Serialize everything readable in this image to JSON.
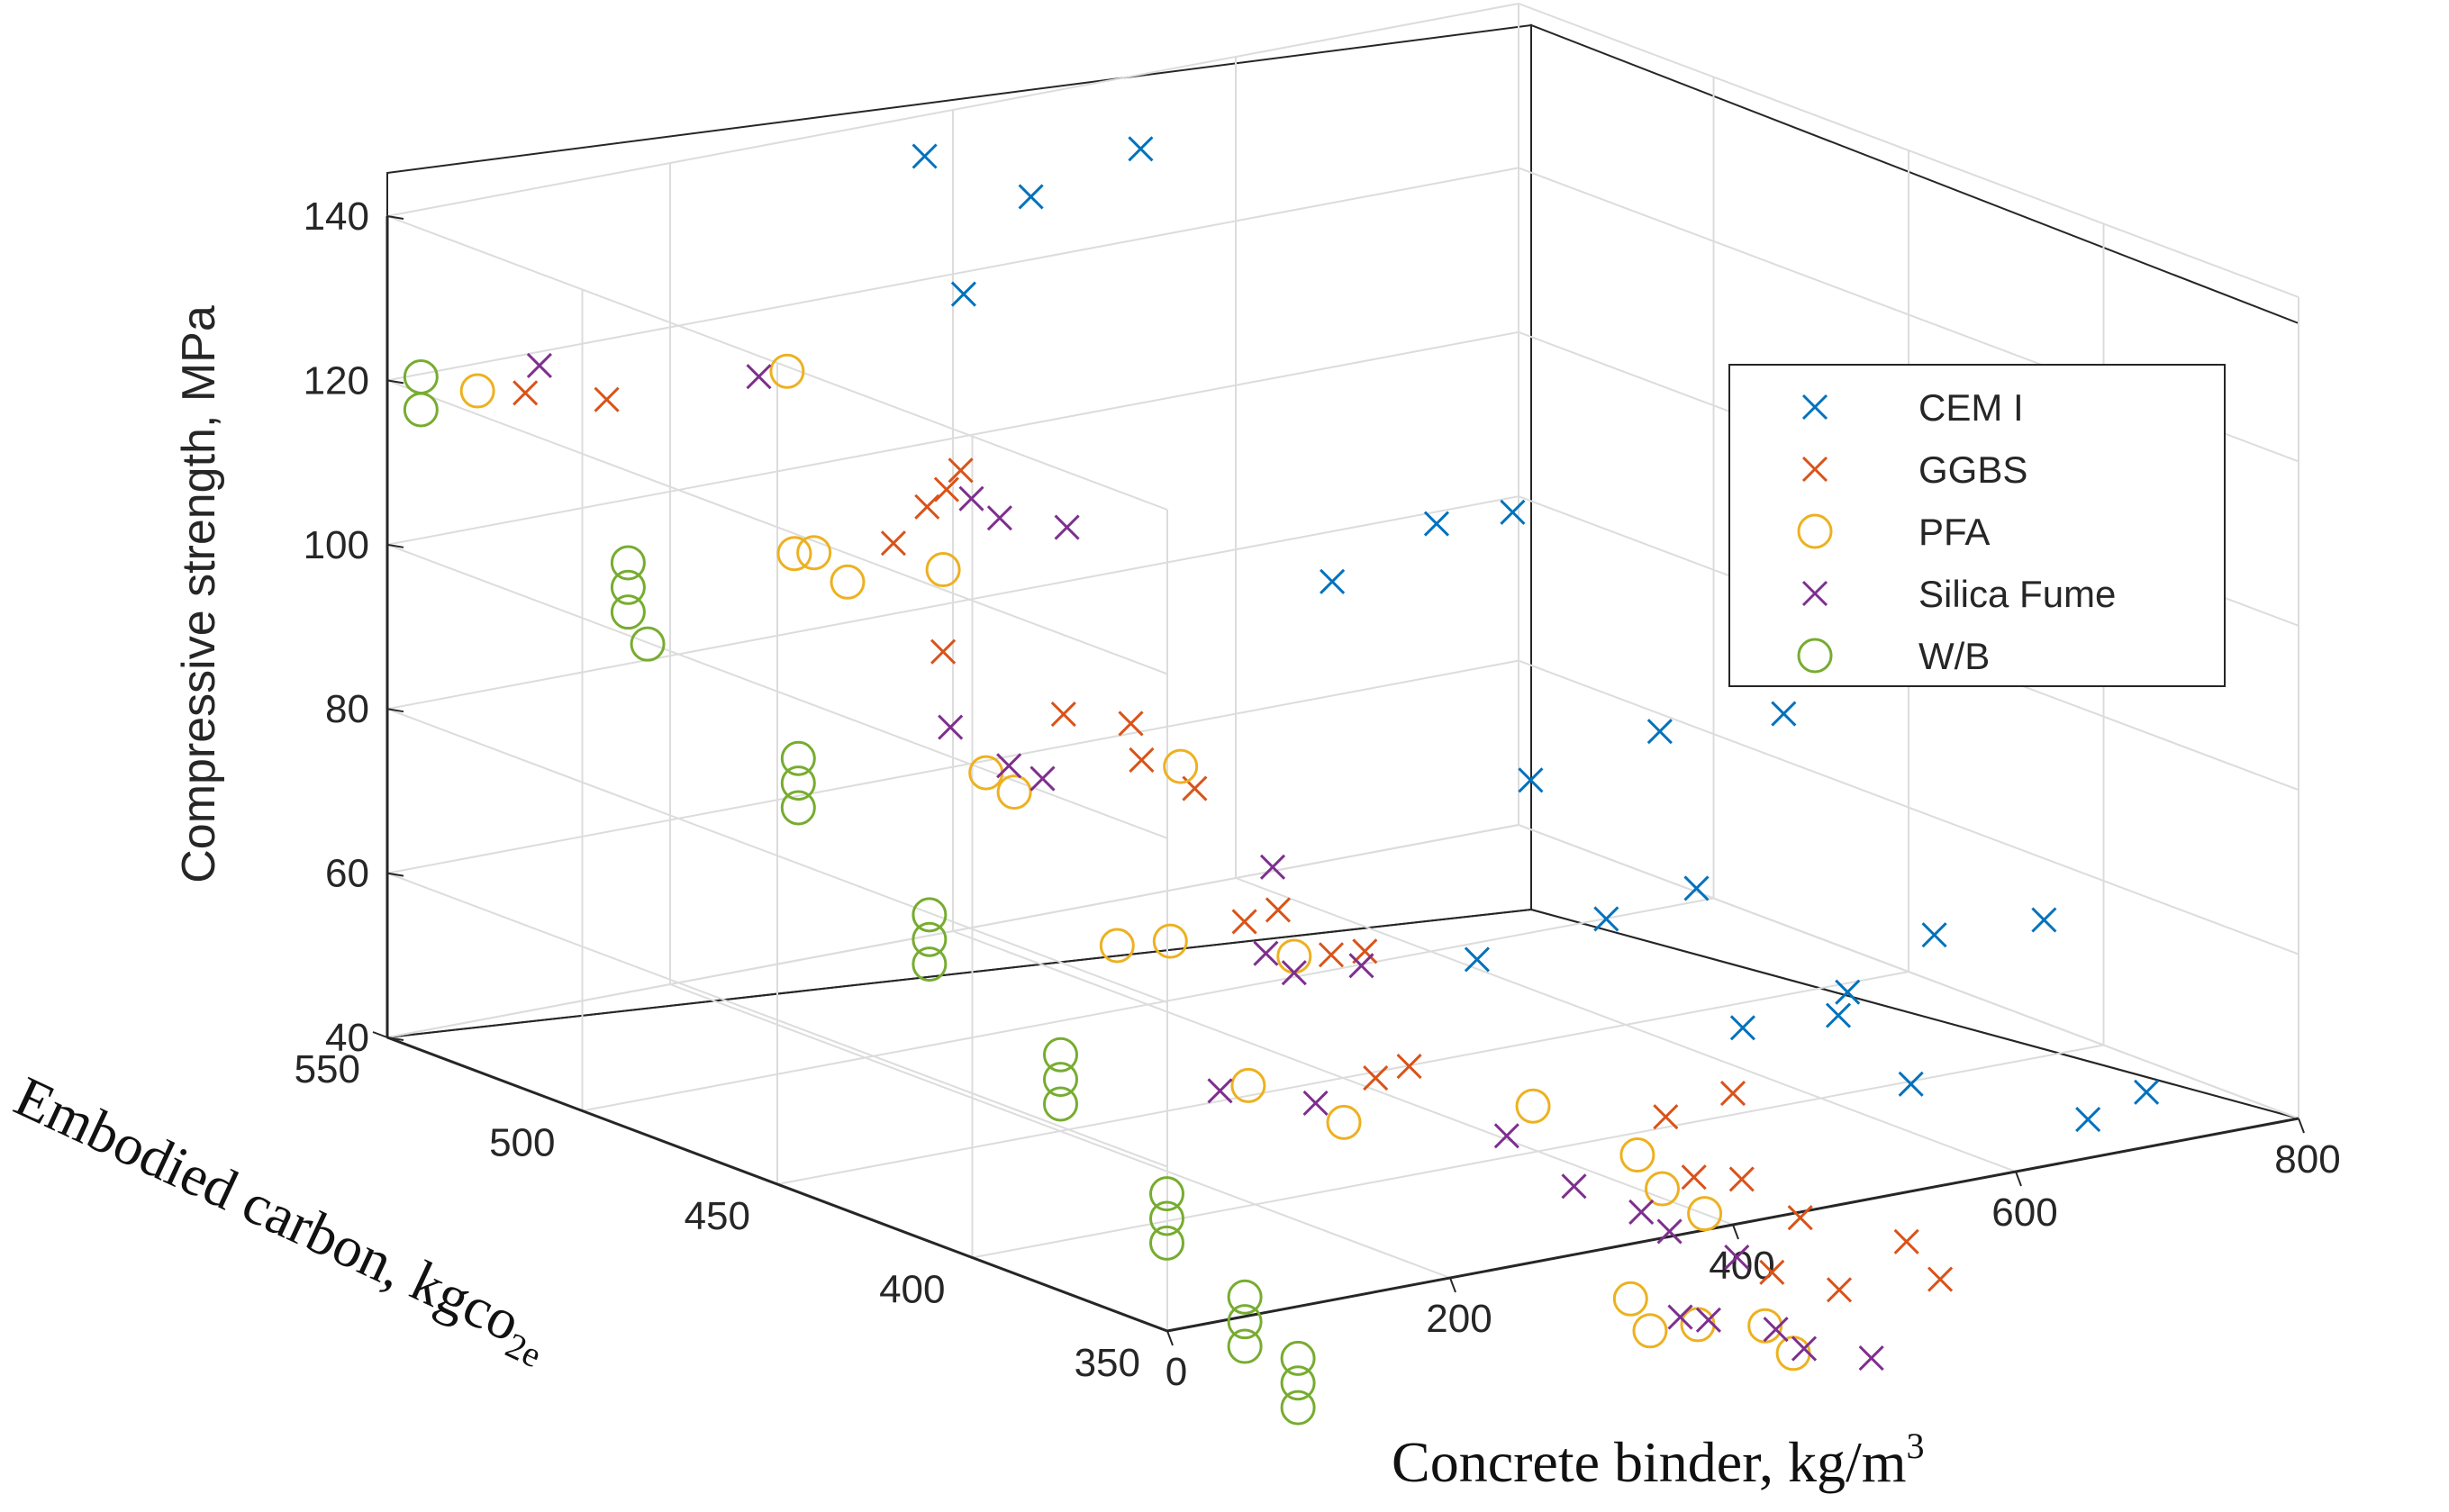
{
  "chart_data": {
    "type": "scatter3d",
    "title": "",
    "xlabel": "Concrete binder, kg/m",
    "xlabel_superscript": "3",
    "ylabel": "Embodied carbon, kgco",
    "ylabel_subscript": "2e",
    "zlabel": "Compressive strength, MPa",
    "xlim": [
      0,
      800
    ],
    "ylim": [
      350,
      550
    ],
    "zlim": [
      40,
      140
    ],
    "xticks": [
      "0",
      "200",
      "400",
      "600",
      "800"
    ],
    "yticks": [
      "350",
      "400",
      "450",
      "500",
      "550"
    ],
    "zticks": [
      "40",
      "60",
      "80",
      "100",
      "120",
      "140"
    ],
    "grid": true,
    "legend_position": "right",
    "series": [
      {
        "name": "CEM I",
        "marker": "x",
        "color": "#0072BD",
        "points": [
          [
            380,
            540,
            120
          ],
          [
            400,
            530,
            133
          ],
          [
            450,
            520,
            139
          ],
          [
            380,
            550,
            135
          ],
          [
            420,
            460,
            98
          ],
          [
            480,
            455,
            104
          ],
          [
            520,
            450,
            105
          ],
          [
            450,
            420,
            80
          ],
          [
            500,
            405,
            87
          ],
          [
            560,
            395,
            89
          ],
          [
            550,
            375,
            59
          ],
          [
            570,
            360,
            68
          ],
          [
            620,
            350,
            70
          ],
          [
            550,
            470,
            46
          ],
          [
            600,
            455,
            52
          ],
          [
            650,
            450,
            55
          ],
          [
            600,
            420,
            45
          ],
          [
            640,
            410,
            47
          ],
          [
            650,
            395,
            41
          ],
          [
            720,
            375,
            38
          ],
          [
            720,
            360,
            44
          ]
        ]
      },
      {
        "name": "GGBS",
        "marker": "x",
        "color": "#D95319",
        "points": [
          [
            70,
            540,
            118
          ],
          [
            100,
            530,
            118
          ],
          [
            220,
            500,
            102
          ],
          [
            230,
            495,
            107
          ],
          [
            230,
            490,
            110
          ],
          [
            240,
            490,
            112
          ],
          [
            200,
            480,
            93
          ],
          [
            230,
            460,
            88
          ],
          [
            250,
            450,
            88
          ],
          [
            230,
            440,
            86
          ],
          [
            240,
            430,
            84
          ],
          [
            220,
            410,
            72
          ],
          [
            230,
            405,
            74
          ],
          [
            240,
            395,
            70
          ],
          [
            250,
            390,
            71
          ],
          [
            230,
            380,
            58
          ],
          [
            240,
            375,
            60
          ],
          [
            380,
            360,
            52
          ],
          [
            400,
            350,
            56
          ],
          [
            400,
            360,
            44
          ],
          [
            420,
            355,
            44
          ],
          [
            420,
            340,
            42
          ],
          [
            400,
            340,
            36
          ],
          [
            420,
            330,
            35
          ],
          [
            440,
            320,
            42
          ],
          [
            450,
            315,
            38
          ]
        ]
      },
      {
        "name": "PFA",
        "marker": "o",
        "color": "#EDB120",
        "points": [
          [
            50,
            545,
            118
          ],
          [
            200,
            520,
            120
          ],
          [
            150,
            500,
            103
          ],
          [
            150,
            495,
            104
          ],
          [
            160,
            490,
            101
          ],
          [
            200,
            480,
            103
          ],
          [
            120,
            440,
            88
          ],
          [
            140,
            440,
            85
          ],
          [
            230,
            430,
            87
          ],
          [
            130,
            410,
            72
          ],
          [
            140,
            400,
            74
          ],
          [
            200,
            390,
            72
          ],
          [
            140,
            380,
            60
          ],
          [
            180,
            370,
            56
          ],
          [
            300,
            365,
            55
          ],
          [
            360,
            360,
            48
          ],
          [
            350,
            350,
            46
          ],
          [
            380,
            350,
            42
          ],
          [
            300,
            340,
            36
          ],
          [
            300,
            335,
            33
          ],
          [
            320,
            330,
            34
          ],
          [
            340,
            320,
            35
          ],
          [
            360,
            320,
            31
          ]
        ]
      },
      {
        "name": "Silica Fume",
        "marker": "x",
        "color": "#7E2F8E",
        "points": [
          [
            80,
            540,
            121
          ],
          [
            180,
            520,
            120
          ],
          [
            220,
            480,
            111
          ],
          [
            240,
            480,
            108
          ],
          [
            260,
            470,
            108
          ],
          [
            150,
            460,
            89
          ],
          [
            150,
            445,
            87
          ],
          [
            160,
            440,
            86
          ],
          [
            240,
            410,
            78
          ],
          [
            180,
            390,
            73
          ],
          [
            200,
            390,
            70
          ],
          [
            220,
            380,
            72
          ],
          [
            120,
            380,
            60
          ],
          [
            160,
            370,
            59
          ],
          [
            240,
            350,
            56
          ],
          [
            260,
            340,
            51
          ],
          [
            280,
            330,
            49
          ],
          [
            300,
            330,
            46
          ],
          [
            320,
            320,
            44
          ],
          [
            280,
            320,
            38
          ],
          [
            300,
            320,
            37
          ],
          [
            320,
            310,
            37
          ],
          [
            340,
            310,
            34
          ],
          [
            360,
            300,
            34
          ]
        ]
      },
      {
        "name": "W/B",
        "marker": "o",
        "color": "#77AC30",
        "points": [
          [
            10,
            545,
            121
          ],
          [
            10,
            545,
            117
          ],
          [
            60,
            510,
            103
          ],
          [
            60,
            510,
            100
          ],
          [
            60,
            510,
            97
          ],
          [
            60,
            505,
            94
          ],
          [
            70,
            470,
            86
          ],
          [
            70,
            470,
            83
          ],
          [
            70,
            470,
            80
          ],
          [
            80,
            440,
            72
          ],
          [
            80,
            440,
            69
          ],
          [
            80,
            440,
            66
          ],
          [
            90,
            410,
            60
          ],
          [
            90,
            410,
            57
          ],
          [
            90,
            410,
            54
          ],
          [
            110,
            390,
            46
          ],
          [
            110,
            390,
            43
          ],
          [
            110,
            390,
            40
          ],
          [
            110,
            370,
            37
          ],
          [
            110,
            370,
            34
          ],
          [
            110,
            370,
            31
          ],
          [
            120,
            360,
            31
          ],
          [
            120,
            360,
            28
          ],
          [
            120,
            360,
            25
          ]
        ]
      }
    ]
  }
}
